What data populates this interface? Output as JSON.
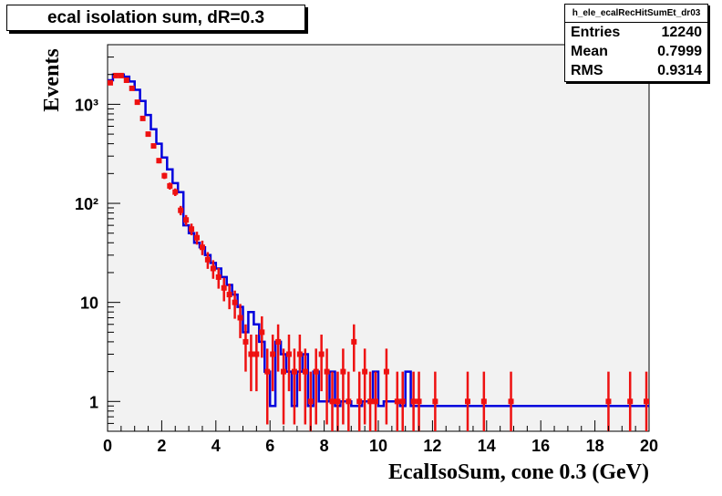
{
  "title": "ecal isolation sum, dR=0.3",
  "stats": {
    "name": "h_ele_ecalRecHitSumEt_dr03",
    "rows": [
      {
        "label": "Entries",
        "value": "12240"
      },
      {
        "label": "Mean",
        "value": "0.7999"
      },
      {
        "label": "RMS",
        "value": "0.9314"
      }
    ]
  },
  "colors": {
    "frame_bg": "#f2f2f2",
    "reference": "#0000dd",
    "data": "#ee1111"
  },
  "chart_data": {
    "type": "histogram",
    "title": "ecal isolation sum, dR=0.3",
    "xlabel": "EcalIsoSum, cone 0.3 (GeV)",
    "ylabel": "Events",
    "xlim": [
      0,
      20
    ],
    "ylim": [
      0.5,
      4000
    ],
    "yscale": "log",
    "xticks": [
      "0",
      "2",
      "4",
      "6",
      "8",
      "10",
      "12",
      "14",
      "16",
      "18",
      "20"
    ],
    "yticks": [
      "1",
      "10",
      "10²",
      "10³"
    ],
    "grid": false,
    "series": [
      {
        "style": "step",
        "color": "#0000dd",
        "bin_width": 0.2,
        "values": [
          1750,
          2000,
          2000,
          1900,
          1700,
          1400,
          1080,
          780,
          560,
          400,
          290,
          220,
          160,
          130,
          60,
          50,
          40,
          36,
          30,
          25,
          22,
          18,
          15,
          12,
          9,
          5,
          8,
          6,
          4,
          2,
          0.9,
          4,
          3,
          2,
          0.9,
          2,
          3,
          0.9,
          2,
          1,
          1,
          2,
          0.9,
          1,
          1,
          0.9,
          0.9,
          1,
          1,
          2,
          0.9,
          1,
          1,
          1,
          0.9,
          2,
          0.9,
          0.9,
          0.9,
          0.9,
          0.9,
          0.9,
          0.9,
          0.9,
          0.9,
          0.9,
          0.9,
          0.9,
          0.9,
          0.9,
          0.9,
          0.9,
          0.9,
          0.9,
          0.9,
          0.9,
          0.9,
          0.9,
          0.9,
          0.9,
          0.9,
          0.9,
          0.9,
          0.9,
          0.9,
          0.9,
          0.9,
          0.9,
          0.9,
          0.9,
          0.9,
          0.9,
          0.9,
          0.9,
          0.9,
          0.9,
          0.9,
          0.9,
          0.9,
          0.9
        ]
      },
      {
        "style": "points_with_errors",
        "color": "#ee1111",
        "points": [
          {
            "x": 0.1,
            "y": 1650
          },
          {
            "x": 0.3,
            "y": 1950
          },
          {
            "x": 0.5,
            "y": 1950
          },
          {
            "x": 0.7,
            "y": 1750
          },
          {
            "x": 0.9,
            "y": 1450
          },
          {
            "x": 1.1,
            "y": 1050
          },
          {
            "x": 1.3,
            "y": 720
          },
          {
            "x": 1.5,
            "y": 500
          },
          {
            "x": 1.7,
            "y": 380
          },
          {
            "x": 1.9,
            "y": 270
          },
          {
            "x": 2.1,
            "y": 190
          },
          {
            "x": 2.3,
            "y": 150
          },
          {
            "x": 2.5,
            "y": 130
          },
          {
            "x": 2.7,
            "y": 85
          },
          {
            "x": 2.9,
            "y": 68
          },
          {
            "x": 3.1,
            "y": 55
          },
          {
            "x": 3.3,
            "y": 45
          },
          {
            "x": 3.5,
            "y": 36
          },
          {
            "x": 3.7,
            "y": 27
          },
          {
            "x": 3.9,
            "y": 22
          },
          {
            "x": 4.1,
            "y": 18
          },
          {
            "x": 4.3,
            "y": 14
          },
          {
            "x": 4.5,
            "y": 12
          },
          {
            "x": 4.7,
            "y": 10
          },
          {
            "x": 4.9,
            "y": 7
          },
          {
            "x": 5.1,
            "y": 4
          },
          {
            "x": 5.3,
            "y": 3
          },
          {
            "x": 5.5,
            "y": 3
          },
          {
            "x": 5.7,
            "y": 5
          },
          {
            "x": 5.9,
            "y": 2
          },
          {
            "x": 6.1,
            "y": 3
          },
          {
            "x": 6.3,
            "y": 4
          },
          {
            "x": 6.5,
            "y": 2
          },
          {
            "x": 6.7,
            "y": 3
          },
          {
            "x": 6.9,
            "y": 2
          },
          {
            "x": 7.1,
            "y": 3
          },
          {
            "x": 7.3,
            "y": 2
          },
          {
            "x": 7.5,
            "y": 1
          },
          {
            "x": 7.7,
            "y": 2
          },
          {
            "x": 7.9,
            "y": 3
          },
          {
            "x": 8.1,
            "y": 2
          },
          {
            "x": 8.3,
            "y": 1
          },
          {
            "x": 8.5,
            "y": 1
          },
          {
            "x": 8.7,
            "y": 2
          },
          {
            "x": 8.9,
            "y": 1
          },
          {
            "x": 9.1,
            "y": 4
          },
          {
            "x": 9.3,
            "y": 1
          },
          {
            "x": 9.5,
            "y": 2
          },
          {
            "x": 9.7,
            "y": 1
          },
          {
            "x": 9.9,
            "y": 1
          },
          {
            "x": 10.3,
            "y": 2
          },
          {
            "x": 10.7,
            "y": 1
          },
          {
            "x": 10.9,
            "y": 1
          },
          {
            "x": 11.3,
            "y": 1
          },
          {
            "x": 11.5,
            "y": 1
          },
          {
            "x": 12.1,
            "y": 1
          },
          {
            "x": 13.3,
            "y": 1
          },
          {
            "x": 13.9,
            "y": 1
          },
          {
            "x": 14.9,
            "y": 1
          },
          {
            "x": 18.5,
            "y": 1
          },
          {
            "x": 19.3,
            "y": 1
          },
          {
            "x": 19.9,
            "y": 1
          }
        ]
      }
    ]
  }
}
